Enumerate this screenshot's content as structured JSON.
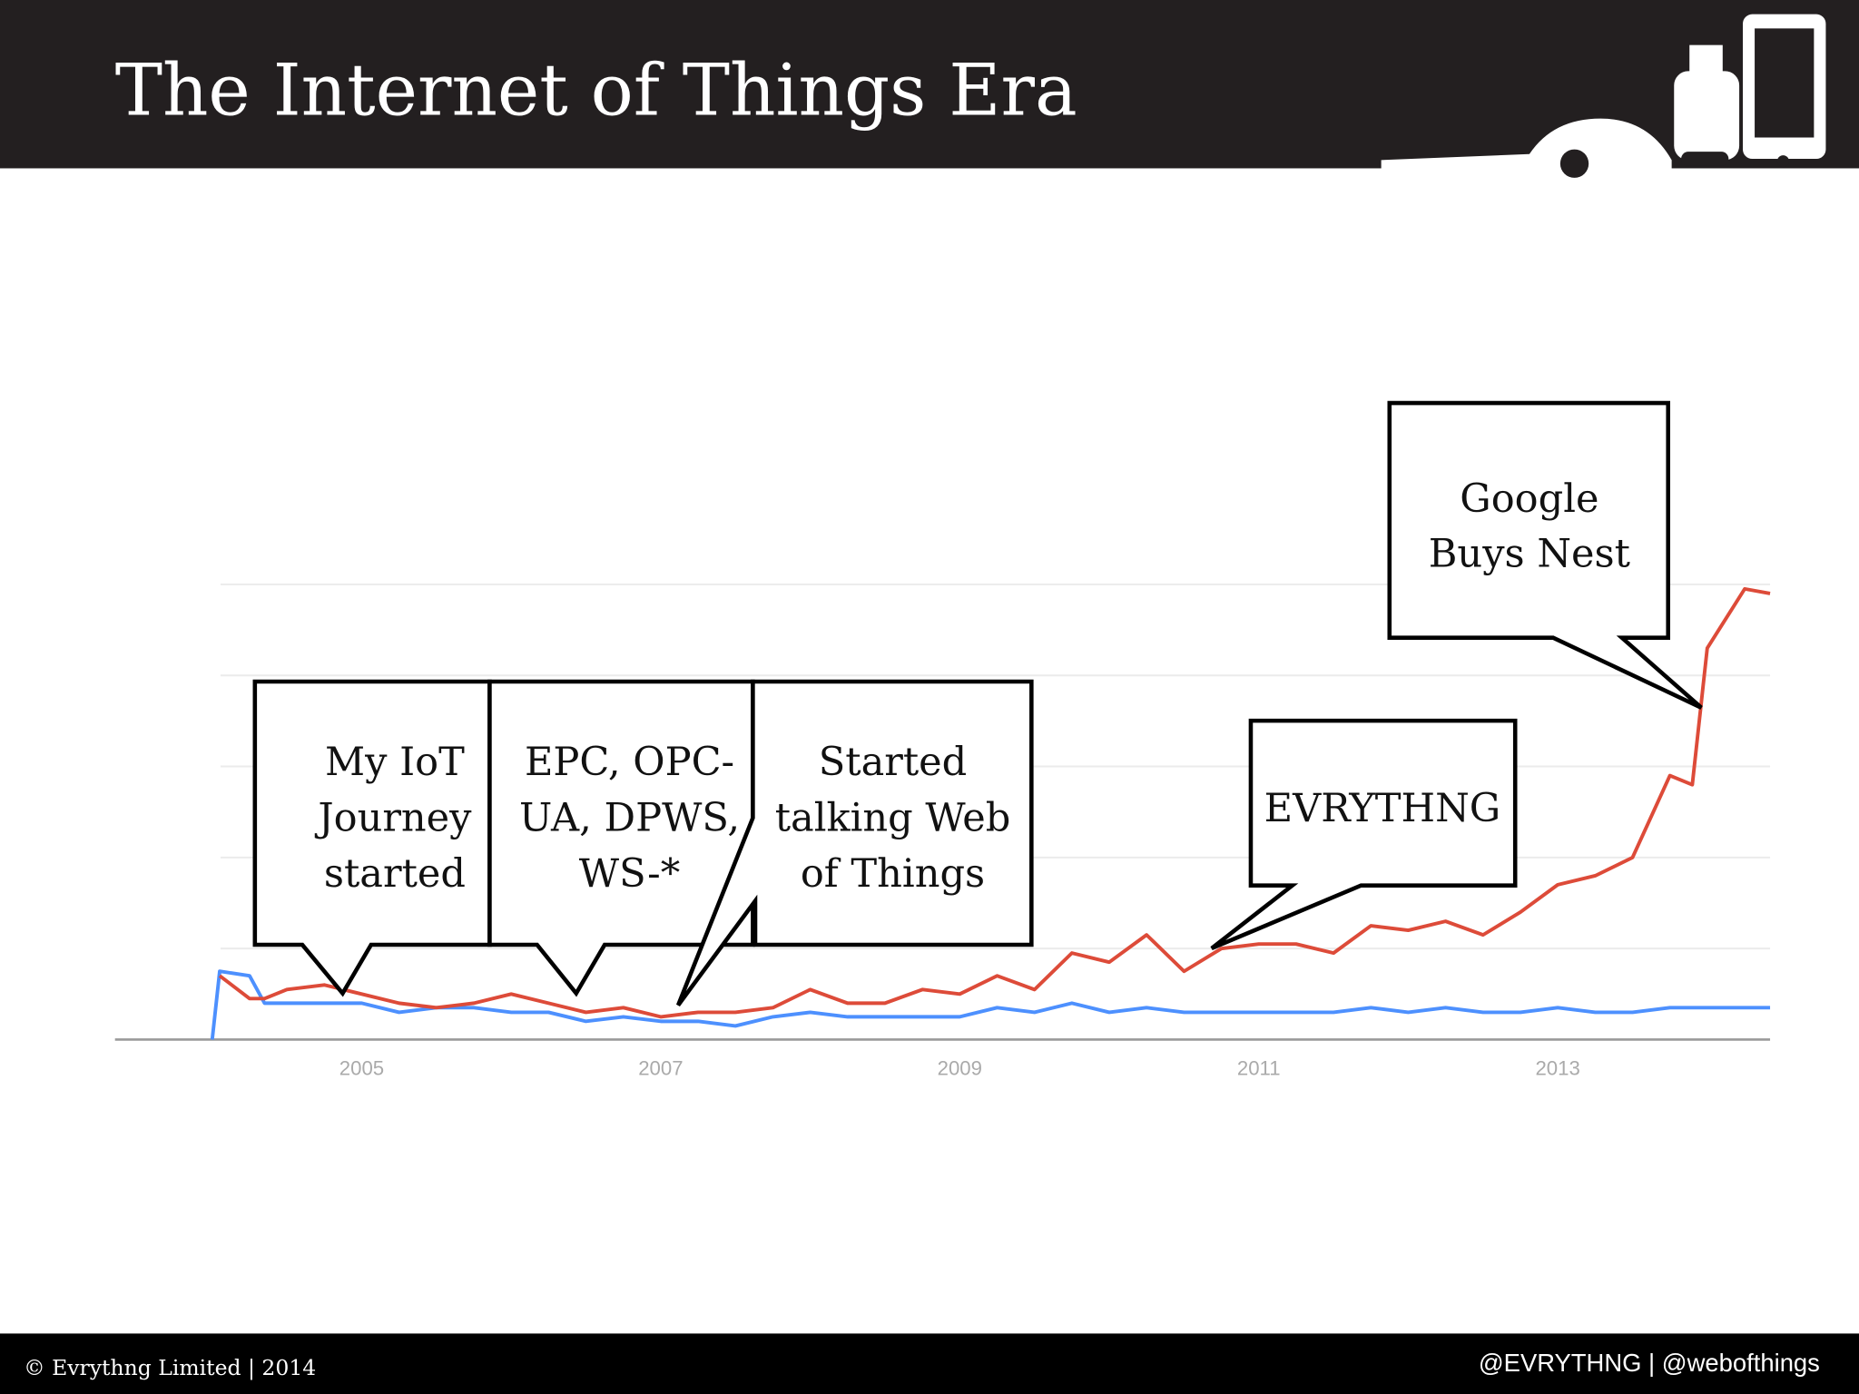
{
  "header": {
    "title": "The Internet of Things Era"
  },
  "footer": {
    "left": "© Evrythng Limited | 2014",
    "right": "@EVRYTHNG | @webofthings"
  },
  "chart_data": {
    "type": "line",
    "x": [
      2004.0,
      2004.05,
      2004.25,
      2004.35,
      2004.5,
      2004.75,
      2005.0,
      2005.25,
      2005.5,
      2005.75,
      2006.0,
      2006.25,
      2006.5,
      2006.75,
      2007.0,
      2007.25,
      2007.5,
      2007.75,
      2008.0,
      2008.25,
      2008.5,
      2008.75,
      2009.0,
      2009.25,
      2009.5,
      2009.75,
      2010.0,
      2010.25,
      2010.5,
      2010.75,
      2011.0,
      2011.25,
      2011.5,
      2011.75,
      2012.0,
      2012.25,
      2012.5,
      2012.75,
      2013.0,
      2013.25,
      2013.5,
      2013.75,
      2013.9,
      2014.0,
      2014.25,
      2014.42
    ],
    "series": [
      {
        "color": "#dd4b39",
        "values": [
          null,
          14,
          9,
          9,
          11,
          12,
          10,
          8,
          7,
          8,
          10,
          8,
          6,
          7,
          5,
          6,
          6,
          7,
          11,
          8,
          8,
          11,
          10,
          14,
          11,
          19,
          17,
          23,
          15,
          20,
          21,
          21,
          19,
          25,
          24,
          26,
          23,
          28,
          34,
          36,
          40,
          58,
          56,
          86,
          99,
          98
        ]
      },
      {
        "color": "#4d90fe",
        "values": [
          0,
          15,
          14,
          8,
          8,
          8,
          8,
          6,
          7,
          7,
          6,
          6,
          4,
          5,
          4,
          4,
          3,
          5,
          6,
          5,
          5,
          5,
          5,
          7,
          6,
          8,
          6,
          7,
          6,
          6,
          6,
          6,
          6,
          7,
          6,
          7,
          6,
          6,
          7,
          6,
          6,
          7,
          7,
          7,
          7,
          7
        ]
      }
    ],
    "xlim": [
      2003.35,
      2014.42
    ],
    "xticks": [
      2005,
      2007,
      2009,
      2011,
      2013
    ],
    "ylim": [
      0,
      100
    ],
    "ygrid": [
      20,
      40,
      60,
      80,
      100
    ],
    "annotations": [
      {
        "lines": [
          "My IoT",
          "Journey",
          "started"
        ]
      },
      {
        "lines": [
          "EPC, OPC-",
          "UA, DPWS,",
          "WS-*"
        ]
      },
      {
        "lines": [
          "Started",
          "talking Web",
          "of Things"
        ]
      },
      {
        "lines": [
          "EVRYTHNG"
        ]
      },
      {
        "lines": [
          "Google",
          "Buys Nest"
        ]
      }
    ]
  }
}
